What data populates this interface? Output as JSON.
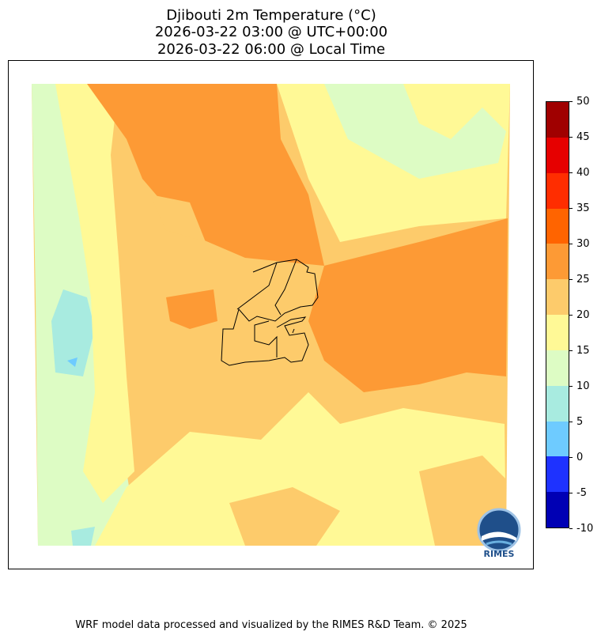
{
  "title": {
    "line1": "Djibouti 2m Temperature (°C)",
    "line2": "2026-03-22 03:00 @ UTC+00:00",
    "line3": "2026-03-22 06:00 @ Local Time"
  },
  "colorbar": {
    "bins": [
      {
        "from": -10,
        "to": -5,
        "color": "#0000b4"
      },
      {
        "from": -5,
        "to": 0,
        "color": "#1e32ff"
      },
      {
        "from": 0,
        "to": 5,
        "color": "#6ecbff"
      },
      {
        "from": 5,
        "to": 10,
        "color": "#a8ebe0"
      },
      {
        "from": 10,
        "to": 15,
        "color": "#ddfcc4"
      },
      {
        "from": 15,
        "to": 20,
        "color": "#fff996"
      },
      {
        "from": 20,
        "to": 25,
        "color": "#fdcb6b"
      },
      {
        "from": 25,
        "to": 30,
        "color": "#fd9a35"
      },
      {
        "from": 30,
        "to": 35,
        "color": "#ff6400"
      },
      {
        "from": 35,
        "to": 40,
        "color": "#ff2d00"
      },
      {
        "from": 40,
        "to": 45,
        "color": "#e60000"
      },
      {
        "from": 45,
        "to": 50,
        "color": "#a00000"
      }
    ],
    "ticks": [
      "-10",
      "-5",
      "0",
      "5",
      "10",
      "15",
      "20",
      "25",
      "30",
      "35",
      "40",
      "45",
      "50"
    ]
  },
  "logo": {
    "text": "RIMES"
  },
  "footer": "WRF model data processed and visualized by the RIMES R&D Team. © 2025"
}
